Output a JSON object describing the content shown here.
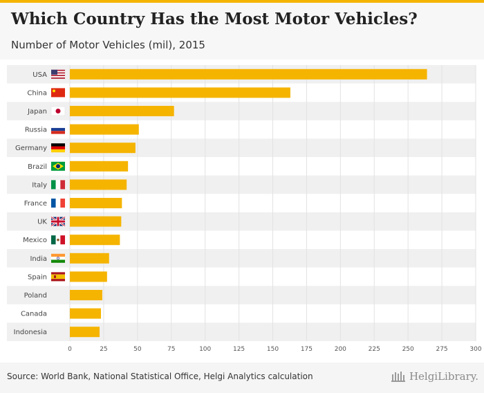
{
  "header": {
    "title": "Which Country Has the Most Motor Vehicles?",
    "subtitle": "Number of Motor Vehicles (mil), 2015"
  },
  "footer": {
    "source": "Source: World Bank, National Statistical Office, Helgi Analytics calculation",
    "brand": "HelgiLibrary."
  },
  "colors": {
    "bar": "#f5b400",
    "accent": "#f5b400",
    "row_band": "#f0f0f0"
  },
  "chart_data": {
    "type": "bar",
    "orientation": "horizontal",
    "title": "Which Country Has the Most Motor Vehicles?",
    "subtitle": "Number of Motor Vehicles (mil), 2015",
    "categories": [
      "USA",
      "China",
      "Japan",
      "Russia",
      "Germany",
      "Brazil",
      "Italy",
      "France",
      "UK",
      "Mexico",
      "India",
      "Spain",
      "Poland",
      "Canada",
      "Indonesia"
    ],
    "flags": [
      "us",
      "cn",
      "jp",
      "ru",
      "de",
      "br",
      "it",
      "fr",
      "gb",
      "mx",
      "in",
      "es",
      "",
      "",
      ""
    ],
    "values": [
      264,
      163,
      77,
      51,
      48.5,
      43,
      42,
      38.5,
      38,
      37,
      29,
      27.5,
      24,
      23,
      22
    ],
    "xlim": [
      0,
      300
    ],
    "xticks": [
      0,
      25,
      50,
      75,
      100,
      125,
      150,
      175,
      200,
      225,
      250,
      275,
      300
    ],
    "xlabel": "",
    "ylabel": "",
    "grid": true
  }
}
